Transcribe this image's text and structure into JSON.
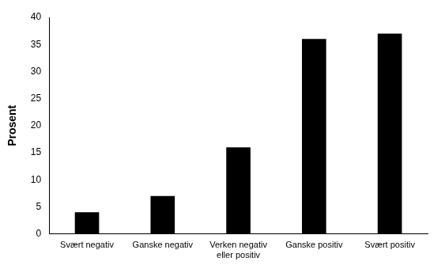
{
  "chart_data": {
    "type": "bar",
    "y_label": "Prosent",
    "categories": [
      "Svært negativ",
      "Ganske negativ",
      "Verken negativ eller positiv",
      "Ganske positiv",
      "Svært positiv"
    ],
    "values": [
      4,
      7,
      16,
      36,
      37
    ],
    "color": "#000000",
    "ylim": [
      0,
      40
    ],
    "yticks": [
      0,
      5,
      10,
      15,
      20,
      25,
      30,
      35,
      40
    ],
    "grid": false
  }
}
